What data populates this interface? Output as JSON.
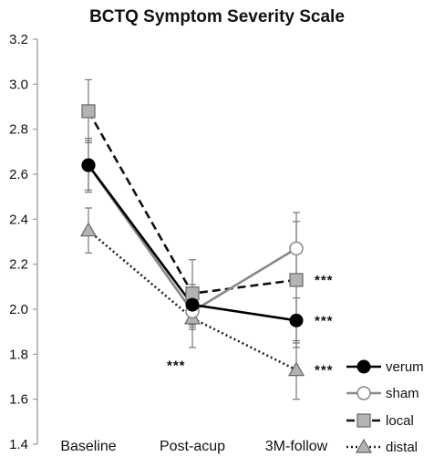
{
  "chart_data": {
    "type": "line",
    "title": "BCTQ Symptom Severity Scale",
    "categories": [
      "Baseline",
      "Post-acup",
      "3M-follow"
    ],
    "ylim": [
      1.4,
      3.2
    ],
    "yticks": [
      "1.4",
      "1.6",
      "1.8",
      "2.0",
      "2.2",
      "2.4",
      "2.6",
      "2.8",
      "3.0",
      "3.2"
    ],
    "grid": false,
    "legend_position": "bottom-right",
    "series": [
      {
        "name": "verum",
        "values": [
          2.64,
          2.02,
          1.95
        ],
        "err": [
          0.11,
          0.09,
          0.1
        ],
        "color": "#000000",
        "line": "solid",
        "marker": "circle-filled"
      },
      {
        "name": "sham",
        "values": [
          2.64,
          1.99,
          2.27
        ],
        "err": [
          0.12,
          0.08,
          0.12
        ],
        "color": "#888888",
        "line": "solid",
        "marker": "circle-open"
      },
      {
        "name": "local",
        "values": [
          2.88,
          2.07,
          2.13
        ],
        "err": [
          0.14,
          0.15,
          0.3
        ],
        "color": "#111111",
        "line": "dashed",
        "marker": "square"
      },
      {
        "name": "distal",
        "values": [
          2.35,
          1.96,
          1.73
        ],
        "err": [
          0.1,
          0.13,
          0.13
        ],
        "color": "#222222",
        "line": "dotted",
        "marker": "triangle"
      }
    ],
    "annotations": [
      {
        "text": "***",
        "category": "Post-acup",
        "y": 1.75
      },
      {
        "text": "***",
        "category": "3M-follow",
        "series": "local"
      },
      {
        "text": "***",
        "category": "3M-follow",
        "series": "verum"
      },
      {
        "text": "***",
        "category": "3M-follow",
        "series": "distal"
      }
    ]
  }
}
